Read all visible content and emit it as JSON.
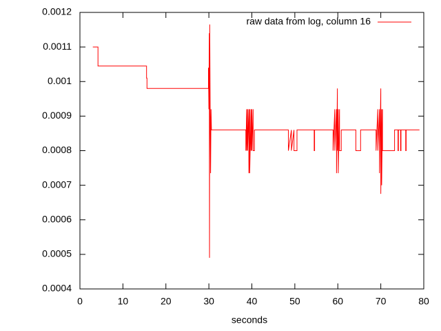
{
  "chart_data": {
    "type": "line",
    "x_label": "seconds",
    "xlim": [
      0,
      80
    ],
    "xticks": [
      0,
      10,
      20,
      30,
      40,
      50,
      60,
      70,
      80
    ],
    "ylim": [
      0.0004,
      0.0012
    ],
    "yticks": [
      0.0004,
      0.0005,
      0.0006,
      0.0007,
      0.0008,
      0.0009,
      0.001,
      0.0011,
      0.0012
    ],
    "legend": "top-right",
    "x": [
      3,
      4.2,
      4.2,
      15.5,
      15.5,
      15.6,
      15.6,
      29.9,
      29.9,
      30.0,
      30.1,
      30.15,
      30.2,
      30.3,
      30.4,
      30.5,
      30.6,
      38.6,
      38.6,
      38.8,
      38.8,
      39.0,
      39.0,
      39.3,
      39.3,
      39.5,
      39.5,
      39.8,
      39.8,
      40.0,
      40.0,
      40.3,
      40.3,
      40.6,
      40.6,
      48.5,
      48.5,
      49.2,
      49.2,
      49.8,
      49.8,
      50.5,
      50.5,
      54.5,
      54.5,
      54.6,
      54.6,
      58.9,
      58.9,
      59.3,
      59.3,
      59.7,
      59.7,
      59.9,
      59.9,
      60.1,
      60.1,
      60.4,
      60.4,
      60.8,
      60.8,
      64.2,
      64.2,
      65.3,
      65.3,
      68.9,
      68.9,
      69.3,
      69.3,
      69.7,
      69.7,
      70.0,
      70.0,
      70.2,
      70.2,
      70.4,
      70.4,
      73.2,
      73.2,
      74.0,
      74.0,
      74.1,
      74.1,
      74.6,
      74.6,
      74.7,
      74.7,
      75.8,
      75.8,
      75.9,
      75.9,
      79
    ],
    "series": [
      {
        "name": "raw data from log, column 16",
        "color": "#ff0000",
        "values": [
          0.0011,
          0.0011,
          0.001045,
          0.001045,
          0.00101,
          0.00101,
          0.00098,
          0.00098,
          0.00104,
          0.00092,
          0.00114,
          0.00049,
          0.001165,
          0.00092,
          0.000735,
          0.00092,
          0.00086,
          0.00086,
          0.0008,
          0.00092,
          0.0008,
          0.00092,
          0.0008,
          0.00092,
          0.000735,
          0.00092,
          0.000735,
          0.00092,
          0.0008,
          0.00092,
          0.0008,
          0.00092,
          0.0008,
          0.0008,
          0.00086,
          0.00086,
          0.0008,
          0.00086,
          0.0008,
          0.00086,
          0.0008,
          0.0008,
          0.00086,
          0.00086,
          0.0008,
          0.0008,
          0.00086,
          0.00086,
          0.0008,
          0.00092,
          0.0008,
          0.00092,
          0.000735,
          0.00098,
          0.0008,
          0.00092,
          0.000735,
          0.00092,
          0.0008,
          0.0008,
          0.00086,
          0.00086,
          0.0008,
          0.0008,
          0.00086,
          0.00086,
          0.0008,
          0.00092,
          0.0008,
          0.00092,
          0.000735,
          0.00098,
          0.000675,
          0.00092,
          0.0007,
          0.00092,
          0.0008,
          0.0008,
          0.00086,
          0.00086,
          0.0008,
          0.0008,
          0.00086,
          0.00086,
          0.0008,
          0.0008,
          0.00086,
          0.00086,
          0.0008,
          0.0008,
          0.00086,
          0.00086
        ]
      }
    ]
  }
}
